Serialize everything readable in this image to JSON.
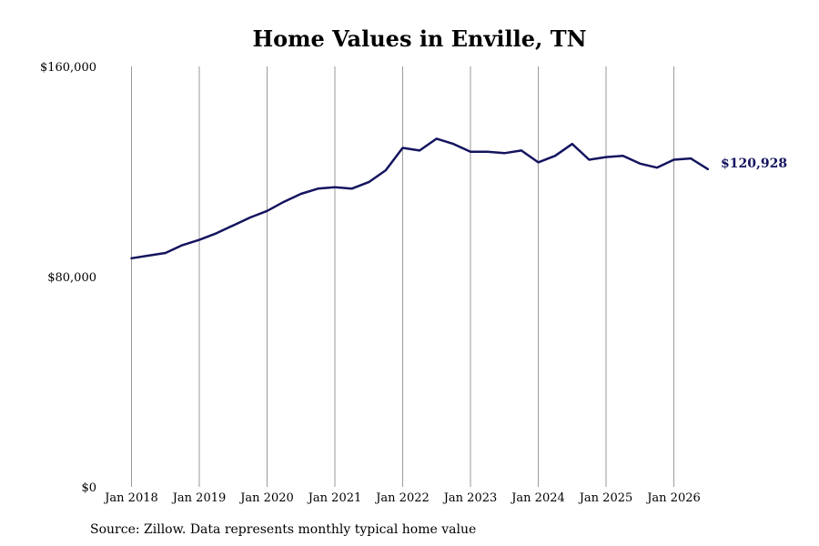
{
  "chart_data": {
    "type": "line",
    "title": "Home Values in Enville, TN",
    "xlabel": "",
    "ylabel": "",
    "ylim": [
      0,
      160000
    ],
    "y_ticks": [
      {
        "value": 0,
        "label": "$0"
      },
      {
        "value": 80000,
        "label": "$80,000"
      },
      {
        "value": 160000,
        "label": "$160,000"
      }
    ],
    "x_ticks": [
      {
        "value": 2018,
        "label": "Jan 2018"
      },
      {
        "value": 2019,
        "label": "Jan 2019"
      },
      {
        "value": 2020,
        "label": "Jan 2020"
      },
      {
        "value": 2021,
        "label": "Jan 2021"
      },
      {
        "value": 2022,
        "label": "Jan 2022"
      },
      {
        "value": 2023,
        "label": "Jan 2023"
      },
      {
        "value": 2024,
        "label": "Jan 2024"
      },
      {
        "value": 2025,
        "label": "Jan 2025"
      },
      {
        "value": 2026,
        "label": "Jan 2026"
      }
    ],
    "xlim": [
      2018,
      2026.5
    ],
    "grid": "vertical",
    "legend": "none",
    "line_color": "#14145f",
    "series": [
      {
        "x": [
          2018,
          2018.25,
          2018.5,
          2018.75,
          2019,
          2019.25,
          2019.5,
          2019.75,
          2020,
          2020.25,
          2020.5,
          2020.75,
          2021,
          2021.25,
          2021.5,
          2021.75,
          2022,
          2022.25,
          2022.5,
          2022.75,
          2023,
          2023.25,
          2023.5,
          2023.75,
          2024,
          2024.25,
          2024.5,
          2024.75,
          2025,
          2025.25,
          2025.5,
          2025.75,
          2026,
          2026.25,
          2026.5
        ],
        "values": [
          87000,
          88000,
          89000,
          92000,
          94000,
          96500,
          99500,
          102500,
          105000,
          108500,
          111500,
          113500,
          114000,
          113500,
          116000,
          120500,
          129000,
          128000,
          132500,
          130500,
          127500,
          127500,
          127000,
          128000,
          123500,
          126000,
          130500,
          124500,
          125500,
          126000,
          123000,
          121500,
          124500,
          125000,
          120928
        ]
      }
    ],
    "end_label": "$120,928"
  },
  "source": "Source: Zillow. Data represents monthly typical home value"
}
